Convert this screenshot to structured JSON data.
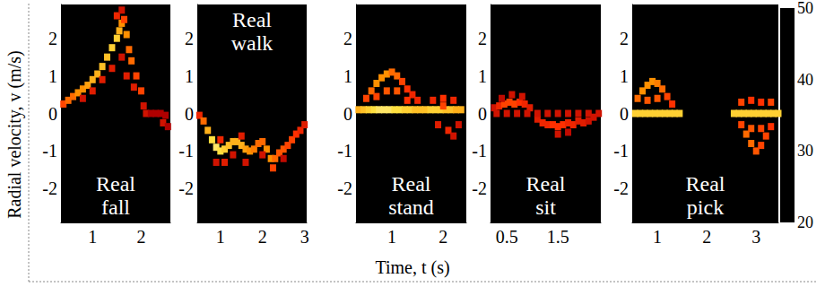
{
  "chart_data": {
    "type": "heatmap",
    "x_label": "Time, t (s)",
    "y_label": "Radial velocity, v (m/s)",
    "colorbar": {
      "range": [
        20,
        50
      ],
      "ticks": [
        20,
        30,
        40,
        50
      ]
    },
    "panels": [
      {
        "label": "Real fall",
        "xlim": [
          0.35,
          2.6
        ],
        "xticks": [
          1,
          2
        ],
        "ylim": [
          -2.9,
          2.9
        ],
        "yticks": [
          -2,
          -1,
          0,
          1,
          2
        ],
        "cells": [
          [
            0.4,
            0.25,
            36
          ],
          [
            0.5,
            0.35,
            38
          ],
          [
            0.6,
            0.45,
            38
          ],
          [
            0.7,
            0.55,
            40
          ],
          [
            0.8,
            0.65,
            40
          ],
          [
            0.9,
            0.75,
            41
          ],
          [
            1.0,
            0.9,
            42
          ],
          [
            1.1,
            1.05,
            42
          ],
          [
            1.2,
            1.25,
            43
          ],
          [
            1.3,
            1.5,
            43
          ],
          [
            1.4,
            1.75,
            44
          ],
          [
            1.5,
            2.0,
            44
          ],
          [
            1.55,
            2.2,
            42
          ],
          [
            1.6,
            2.4,
            40
          ],
          [
            1.65,
            2.5,
            36
          ],
          [
            1.7,
            2.1,
            40
          ],
          [
            1.75,
            1.7,
            38
          ],
          [
            1.8,
            1.4,
            38
          ],
          [
            1.9,
            1.0,
            36
          ],
          [
            2.0,
            0.6,
            36
          ],
          [
            2.05,
            0.2,
            32
          ],
          [
            2.1,
            0.0,
            32
          ],
          [
            2.2,
            0.0,
            30
          ],
          [
            2.3,
            0.0,
            30
          ],
          [
            2.4,
            0.0,
            30
          ],
          [
            2.5,
            -0.05,
            30
          ],
          [
            2.45,
            -0.25,
            32
          ],
          [
            2.55,
            -0.35,
            30
          ],
          [
            0.8,
            0.4,
            32
          ],
          [
            1.0,
            0.6,
            33
          ],
          [
            1.2,
            0.9,
            33
          ],
          [
            1.4,
            1.2,
            33
          ],
          [
            1.6,
            1.5,
            32
          ],
          [
            1.5,
            2.6,
            34
          ],
          [
            1.6,
            2.75,
            32
          ],
          [
            1.7,
            1.0,
            33
          ],
          [
            1.85,
            0.7,
            33
          ]
        ]
      },
      {
        "label": "Real walk",
        "xlim": [
          0.45,
          3.05
        ],
        "xticks": [
          1,
          2,
          3
        ],
        "ylim": [
          -2.9,
          2.9
        ],
        "yticks": [
          -2,
          -1,
          0,
          1,
          2
        ],
        "cells": [
          [
            0.5,
            -0.05,
            34
          ],
          [
            0.6,
            -0.2,
            38
          ],
          [
            0.7,
            -0.45,
            42
          ],
          [
            0.8,
            -0.7,
            45
          ],
          [
            0.9,
            -0.9,
            46
          ],
          [
            1.0,
            -1.0,
            45
          ],
          [
            1.1,
            -0.95,
            44
          ],
          [
            1.2,
            -0.85,
            43
          ],
          [
            1.3,
            -0.75,
            42
          ],
          [
            1.4,
            -0.75,
            42
          ],
          [
            1.5,
            -0.85,
            42
          ],
          [
            1.6,
            -0.95,
            41
          ],
          [
            1.7,
            -1.0,
            40
          ],
          [
            1.8,
            -0.95,
            39
          ],
          [
            1.9,
            -0.8,
            38
          ],
          [
            2.0,
            -0.75,
            38
          ],
          [
            2.1,
            -0.95,
            40
          ],
          [
            2.2,
            -1.2,
            40
          ],
          [
            2.25,
            -1.45,
            36
          ],
          [
            2.3,
            -1.2,
            38
          ],
          [
            2.4,
            -1.05,
            37
          ],
          [
            2.5,
            -0.95,
            37
          ],
          [
            2.6,
            -0.85,
            36
          ],
          [
            2.7,
            -0.7,
            36
          ],
          [
            2.8,
            -0.55,
            35
          ],
          [
            2.9,
            -0.45,
            34
          ],
          [
            3.0,
            -0.3,
            33
          ],
          [
            0.9,
            -1.3,
            32
          ],
          [
            1.1,
            -1.3,
            33
          ],
          [
            1.3,
            -1.1,
            32
          ],
          [
            1.6,
            -1.3,
            32
          ],
          [
            2.0,
            -1.1,
            32
          ],
          [
            2.5,
            -1.2,
            31
          ],
          [
            1.0,
            -0.7,
            34
          ],
          [
            1.5,
            -0.6,
            33
          ]
        ]
      },
      {
        "label": "Real stand",
        "xlim": [
          0.3,
          2.45
        ],
        "xticks": [
          1,
          2
        ],
        "ylim": [
          -2.9,
          2.9
        ],
        "yticks": [
          -2,
          -1,
          0,
          1,
          2
        ],
        "cells": [
          [
            0.35,
            0.1,
            42
          ],
          [
            0.45,
            0.1,
            43
          ],
          [
            0.55,
            0.1,
            44
          ],
          [
            0.65,
            0.1,
            45
          ],
          [
            0.75,
            0.1,
            46
          ],
          [
            0.85,
            0.1,
            46
          ],
          [
            0.95,
            0.1,
            46
          ],
          [
            1.05,
            0.1,
            45
          ],
          [
            1.15,
            0.1,
            45
          ],
          [
            1.25,
            0.1,
            44
          ],
          [
            1.35,
            0.1,
            44
          ],
          [
            1.45,
            0.1,
            43
          ],
          [
            1.55,
            0.1,
            43
          ],
          [
            1.65,
            0.1,
            43
          ],
          [
            1.75,
            0.1,
            44
          ],
          [
            1.85,
            0.1,
            44
          ],
          [
            1.95,
            0.1,
            44
          ],
          [
            2.05,
            0.1,
            43
          ],
          [
            2.15,
            0.1,
            43
          ],
          [
            2.25,
            0.1,
            42
          ],
          [
            2.35,
            0.1,
            42
          ],
          [
            0.5,
            0.4,
            36
          ],
          [
            0.6,
            0.6,
            38
          ],
          [
            0.7,
            0.8,
            40
          ],
          [
            0.8,
            0.95,
            40
          ],
          [
            0.9,
            1.05,
            40
          ],
          [
            1.0,
            1.1,
            38
          ],
          [
            1.1,
            1.0,
            38
          ],
          [
            1.2,
            0.85,
            36
          ],
          [
            1.3,
            0.65,
            35
          ],
          [
            1.4,
            0.5,
            34
          ],
          [
            1.5,
            0.35,
            34
          ],
          [
            0.7,
            0.45,
            36
          ],
          [
            0.9,
            0.6,
            37
          ],
          [
            1.1,
            0.6,
            37
          ],
          [
            1.3,
            0.35,
            35
          ],
          [
            1.8,
            0.35,
            34
          ],
          [
            2.0,
            0.4,
            35
          ],
          [
            2.2,
            0.35,
            34
          ],
          [
            2.0,
            0.2,
            36
          ],
          [
            1.9,
            -0.3,
            33
          ],
          [
            2.1,
            -0.45,
            34
          ],
          [
            2.2,
            -0.6,
            32
          ],
          [
            2.3,
            -0.3,
            32
          ]
        ]
      },
      {
        "label": "Real sit",
        "xlim": [
          0.18,
          2.34
        ],
        "xticks": [
          0.5,
          1.5
        ],
        "ylim": [
          -2.9,
          2.9
        ],
        "yticks": [
          -2,
          -1,
          0,
          1,
          2
        ],
        "cells": [
          [
            0.25,
            0.15,
            32
          ],
          [
            0.35,
            0.2,
            34
          ],
          [
            0.45,
            0.25,
            36
          ],
          [
            0.55,
            0.3,
            36
          ],
          [
            0.65,
            0.25,
            36
          ],
          [
            0.75,
            0.3,
            35
          ],
          [
            0.85,
            0.25,
            34
          ],
          [
            0.95,
            0.15,
            33
          ],
          [
            0.6,
            0.5,
            32
          ],
          [
            0.8,
            0.45,
            32
          ],
          [
            0.4,
            0.4,
            31
          ],
          [
            1.1,
            -0.15,
            33
          ],
          [
            1.2,
            -0.25,
            34
          ],
          [
            1.3,
            -0.3,
            34
          ],
          [
            1.4,
            -0.3,
            35
          ],
          [
            1.5,
            -0.35,
            35
          ],
          [
            1.6,
            -0.3,
            35
          ],
          [
            1.7,
            -0.25,
            34
          ],
          [
            1.8,
            -0.3,
            34
          ],
          [
            1.9,
            -0.2,
            33
          ],
          [
            2.0,
            -0.25,
            33
          ],
          [
            2.1,
            -0.2,
            32
          ],
          [
            2.2,
            -0.1,
            32
          ],
          [
            1.5,
            -0.55,
            32
          ],
          [
            1.7,
            -0.5,
            31
          ],
          [
            0.3,
            0.0,
            32
          ],
          [
            0.5,
            0.0,
            32
          ],
          [
            0.7,
            0.0,
            32
          ],
          [
            0.9,
            0.0,
            32
          ],
          [
            1.1,
            0.0,
            32
          ],
          [
            1.3,
            0.0,
            32
          ],
          [
            1.5,
            0.0,
            32
          ],
          [
            1.7,
            0.0,
            32
          ],
          [
            1.9,
            0.0,
            32
          ],
          [
            2.1,
            0.0,
            32
          ],
          [
            2.3,
            0.0,
            32
          ]
        ]
      },
      {
        "label": "Real pick",
        "xlim": [
          0.49,
          3.45
        ],
        "xticks": [
          1,
          2,
          3
        ],
        "ylim": [
          -2.9,
          2.9
        ],
        "yticks": [
          -2,
          -1,
          0,
          1,
          2
        ],
        "cells": [
          [
            0.55,
            0.0,
            44
          ],
          [
            0.65,
            0.0,
            44
          ],
          [
            0.75,
            0.0,
            44
          ],
          [
            0.85,
            0.0,
            44
          ],
          [
            0.95,
            0.0,
            44
          ],
          [
            1.05,
            0.0,
            44
          ],
          [
            1.15,
            0.0,
            44
          ],
          [
            1.25,
            0.0,
            44
          ],
          [
            1.35,
            0.0,
            44
          ],
          [
            1.45,
            0.0,
            44
          ],
          [
            0.6,
            0.4,
            38
          ],
          [
            0.7,
            0.6,
            40
          ],
          [
            0.8,
            0.75,
            40
          ],
          [
            0.9,
            0.85,
            40
          ],
          [
            1.0,
            0.8,
            39
          ],
          [
            1.1,
            0.65,
            38
          ],
          [
            1.2,
            0.45,
            36
          ],
          [
            1.3,
            0.25,
            35
          ],
          [
            0.8,
            0.35,
            37
          ],
          [
            1.0,
            0.4,
            37
          ],
          [
            2.55,
            0.0,
            44
          ],
          [
            2.65,
            0.0,
            44
          ],
          [
            2.75,
            0.0,
            44
          ],
          [
            2.85,
            0.0,
            44
          ],
          [
            2.95,
            0.0,
            44
          ],
          [
            3.05,
            0.0,
            44
          ],
          [
            3.15,
            0.0,
            44
          ],
          [
            3.25,
            0.0,
            44
          ],
          [
            3.35,
            0.0,
            44
          ],
          [
            3.45,
            0.0,
            44
          ],
          [
            2.7,
            0.3,
            36
          ],
          [
            2.9,
            0.35,
            35
          ],
          [
            3.1,
            0.3,
            35
          ],
          [
            3.3,
            0.3,
            36
          ],
          [
            2.7,
            -0.3,
            36
          ],
          [
            2.8,
            -0.55,
            38
          ],
          [
            2.9,
            -0.8,
            38
          ],
          [
            3.0,
            -1.0,
            37
          ],
          [
            3.1,
            -0.85,
            36
          ],
          [
            3.2,
            -0.6,
            36
          ],
          [
            3.3,
            -0.35,
            35
          ],
          [
            2.9,
            -0.4,
            37
          ],
          [
            3.1,
            -0.4,
            36
          ]
        ]
      }
    ]
  }
}
